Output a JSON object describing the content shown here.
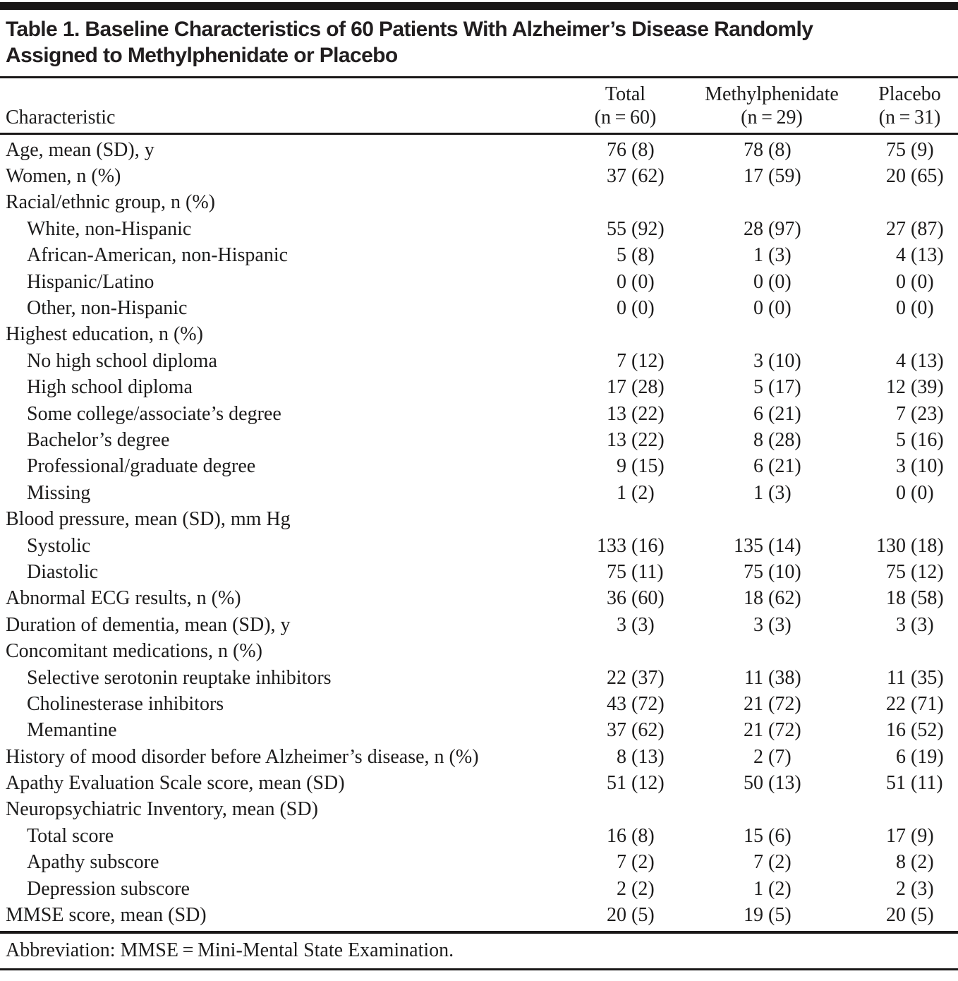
{
  "table": {
    "title_lines": [
      "Table 1. Baseline Characteristics of 60 Patients With Alzheimer’s Disease Randomly",
      "Assigned to Methylphenidate or Placebo"
    ],
    "columns": {
      "characteristic": "Characteristic",
      "groups": [
        {
          "label": "Total",
          "n": "(n = 60)"
        },
        {
          "label": "Methylphenidate",
          "n": "(n = 29)"
        },
        {
          "label": "Placebo",
          "n": "(n = 31)"
        }
      ]
    },
    "rows": [
      {
        "label": "Age, mean (SD), y",
        "indent": 0,
        "values": [
          "76 (8)",
          "78 (8)",
          "75 (9)"
        ]
      },
      {
        "label": "Women, n (%)",
        "indent": 0,
        "values": [
          "37 (62)",
          "17 (59)",
          "20 (65)"
        ]
      },
      {
        "label": "Racial/ethnic group, n (%)",
        "indent": 0,
        "values": null
      },
      {
        "label": "White, non-Hispanic",
        "indent": 1,
        "values": [
          "55 (92)",
          "28 (97)",
          "27 (87)"
        ]
      },
      {
        "label": "African-American, non-Hispanic",
        "indent": 1,
        "values": [
          "5 (8)",
          "1 (3)",
          "4 (13)"
        ]
      },
      {
        "label": "Hispanic/Latino",
        "indent": 1,
        "values": [
          "0 (0)",
          "0 (0)",
          "0 (0)"
        ]
      },
      {
        "label": "Other, non-Hispanic",
        "indent": 1,
        "values": [
          "0 (0)",
          "0 (0)",
          "0 (0)"
        ]
      },
      {
        "label": "Highest education, n (%)",
        "indent": 0,
        "values": null
      },
      {
        "label": "No high school diploma",
        "indent": 1,
        "values": [
          "7 (12)",
          "3 (10)",
          "4 (13)"
        ]
      },
      {
        "label": "High school diploma",
        "indent": 1,
        "values": [
          "17 (28)",
          "5 (17)",
          "12 (39)"
        ]
      },
      {
        "label": "Some college/associate’s degree",
        "indent": 1,
        "values": [
          "13 (22)",
          "6 (21)",
          "7 (23)"
        ]
      },
      {
        "label": "Bachelor’s degree",
        "indent": 1,
        "values": [
          "13 (22)",
          "8 (28)",
          "5 (16)"
        ]
      },
      {
        "label": "Professional/graduate degree",
        "indent": 1,
        "values": [
          "9 (15)",
          "6 (21)",
          "3 (10)"
        ]
      },
      {
        "label": "Missing",
        "indent": 1,
        "values": [
          "1 (2)",
          "1 (3)",
          "0 (0)"
        ]
      },
      {
        "label": "Blood pressure, mean (SD), mm Hg",
        "indent": 0,
        "values": null
      },
      {
        "label": "Systolic",
        "indent": 1,
        "values": [
          "133 (16)",
          "135 (14)",
          "130 (18)"
        ]
      },
      {
        "label": "Diastolic",
        "indent": 1,
        "values": [
          "75 (11)",
          "75 (10)",
          "75 (12)"
        ]
      },
      {
        "label": "Abnormal ECG results, n (%)",
        "indent": 0,
        "values": [
          "36 (60)",
          "18 (62)",
          "18 (58)"
        ]
      },
      {
        "label": "Duration of dementia, mean (SD), y",
        "indent": 0,
        "values": [
          "3 (3)",
          "3 (3)",
          "3 (3)"
        ]
      },
      {
        "label": "Concomitant medications, n (%)",
        "indent": 0,
        "values": null
      },
      {
        "label": "Selective serotonin reuptake inhibitors",
        "indent": 1,
        "values": [
          "22 (37)",
          "11 (38)",
          "11 (35)"
        ]
      },
      {
        "label": "Cholinesterase inhibitors",
        "indent": 1,
        "values": [
          "43 (72)",
          "21 (72)",
          "22 (71)"
        ]
      },
      {
        "label": "Memantine",
        "indent": 1,
        "values": [
          "37 (62)",
          "21 (72)",
          "16 (52)"
        ]
      },
      {
        "label": "History of mood disorder before Alzheimer’s disease, n (%)",
        "indent": 0,
        "values": [
          "8 (13)",
          "2 (7)",
          "6 (19)"
        ]
      },
      {
        "label": "Apathy Evaluation Scale score, mean (SD)",
        "indent": 0,
        "values": [
          "51 (12)",
          "50 (13)",
          "51 (11)"
        ]
      },
      {
        "label": "Neuropsychiatric Inventory, mean (SD)",
        "indent": 0,
        "values": null
      },
      {
        "label": "Total score",
        "indent": 1,
        "values": [
          "16 (8)",
          "15 (6)",
          "17 (9)"
        ]
      },
      {
        "label": "Apathy subscore",
        "indent": 1,
        "values": [
          "7 (2)",
          "7 (2)",
          "8 (2)"
        ]
      },
      {
        "label": "Depression subscore",
        "indent": 1,
        "values": [
          "2 (2)",
          "1 (2)",
          "2 (3)"
        ]
      },
      {
        "label": "MMSE score, mean (SD)",
        "indent": 0,
        "values": [
          "20 (5)",
          "19 (5)",
          "20 (5)"
        ]
      }
    ],
    "footnote": "Abbreviation: MMSE = Mini-Mental State Examination.",
    "colors": {
      "text": "#1d1c1c",
      "rule": "#1a1818",
      "background": "#ffffff"
    }
  }
}
